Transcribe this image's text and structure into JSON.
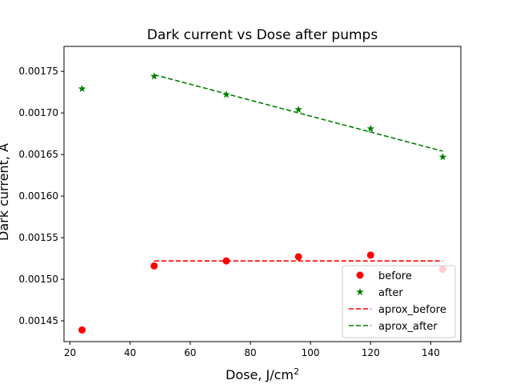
{
  "chart_data": {
    "type": "scatter",
    "title": "Dark current vs Dose after pumps",
    "xlabel": "Dose, J/cm",
    "xlabel_sup": "2",
    "ylabel": "Dark current, A",
    "xlim": [
      18,
      150
    ],
    "ylim": [
      0.001425,
      0.00178
    ],
    "x_ticks": [
      20,
      40,
      60,
      80,
      100,
      120,
      140
    ],
    "y_ticks": [
      0.00145,
      0.0015,
      0.00155,
      0.0016,
      0.00165,
      0.0017,
      0.00175
    ],
    "grid": false,
    "legend_position": "lower right",
    "series": [
      {
        "name": "before",
        "kind": "scatter",
        "marker": "circle",
        "color": "#ff0000",
        "x": [
          24,
          48,
          72,
          96,
          120,
          144
        ],
        "y": [
          0.001439,
          0.001516,
          0.001522,
          0.001527,
          0.001529,
          0.001512
        ]
      },
      {
        "name": "after",
        "kind": "scatter",
        "marker": "star",
        "color": "#008000",
        "x": [
          24,
          48,
          72,
          96,
          120,
          144
        ],
        "y": [
          0.001729,
          0.001744,
          0.001722,
          0.001704,
          0.001681,
          0.001647
        ]
      },
      {
        "name": "aprox_before",
        "kind": "line",
        "dash": "dashed",
        "color": "#ff0000",
        "x": [
          48,
          144
        ],
        "y": [
          0.001522,
          0.001522
        ]
      },
      {
        "name": "aprox_after",
        "kind": "line",
        "dash": "dashed",
        "color": "#008000",
        "x": [
          48,
          144
        ],
        "y": [
          0.001746,
          0.001654
        ]
      }
    ]
  }
}
